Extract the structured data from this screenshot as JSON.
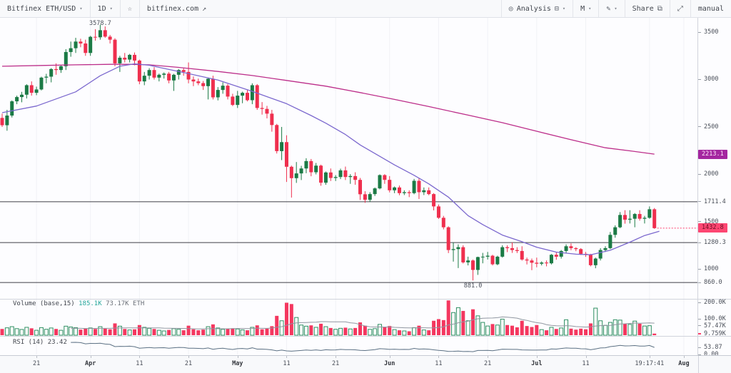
{
  "toolbar": {
    "symbol": "Bitfinex ETH/USD",
    "interval": "1D",
    "link": "bitfinex.com",
    "analysis_label": "Analysis",
    "chart_type_label": "M",
    "share_label": "Share",
    "manual_label": "manual"
  },
  "annotations": {
    "high_label": "3578.7",
    "low_label": "881.0"
  },
  "volume_pane": {
    "legend": {
      "title": "Volume (base,15)",
      "value1": "185.1K",
      "value2": "73.17K ETH"
    },
    "ticks": [
      {
        "v": 200,
        "label": "200.0K"
      },
      {
        "v": 100,
        "label": "100.0K"
      },
      {
        "v": 57.47,
        "label": "57.47K"
      },
      {
        "v": 9.759,
        "label": "9.759K",
        "pink": true
      }
    ]
  },
  "rsi_pane": {
    "legend": "RSI (14) 23.42",
    "ticks": [
      {
        "v": 53.87,
        "label": "53.87"
      },
      {
        "v": 0,
        "label": "0.00"
      }
    ]
  },
  "price_axis": {
    "ticks": [
      {
        "v": 3500,
        "label": "3500"
      },
      {
        "v": 3000,
        "label": "3000"
      },
      {
        "v": 2500,
        "label": "2500"
      },
      {
        "v": 2000,
        "label": "2000"
      },
      {
        "v": 1711.4,
        "label": "1711.4"
      },
      {
        "v": 1500,
        "label": "1500"
      },
      {
        "v": 1280.3,
        "label": "1280.3"
      },
      {
        "v": 1000,
        "label": "1000"
      },
      {
        "v": 860.0,
        "label": "860.0"
      }
    ],
    "badges": [
      {
        "v": 2213.1,
        "label": "2213.1",
        "bg": "#a426a0",
        "fg": "#ffe6fb"
      },
      {
        "v": 1432.8,
        "label": "1432.8",
        "bg": "#fd4672",
        "fg": "#6b0d22"
      }
    ]
  },
  "time_axis": {
    "ticks": [
      {
        "i": 7,
        "label": "21"
      },
      {
        "i": 18,
        "label": "Apr",
        "bold": true
      },
      {
        "i": 28,
        "label": "11"
      },
      {
        "i": 38,
        "label": "21"
      },
      {
        "i": 48,
        "label": "May",
        "bold": true
      },
      {
        "i": 58,
        "label": "11"
      },
      {
        "i": 68,
        "label": "21"
      },
      {
        "i": 79,
        "label": "Jun",
        "bold": true
      },
      {
        "i": 89,
        "label": "11"
      },
      {
        "i": 99,
        "label": "21"
      },
      {
        "i": 109,
        "label": "Jul",
        "bold": true
      },
      {
        "i": 119,
        "label": "11"
      },
      {
        "i": 132,
        "label": "19:17:41"
      },
      {
        "i": 139,
        "label": "Aug",
        "bold": true
      }
    ]
  },
  "colors": {
    "up": "#1b7a45",
    "down": "#ef2f4e",
    "ma_short": "#7b68ce",
    "ma_long": "#bc2e8a",
    "last_price_line": "#fd3e6b",
    "vol_up_stroke": "#2f8f63",
    "vol_up_fill": "#fbfdfc",
    "vol_down": "#f4375f",
    "vol_ma": "#9096a0",
    "rsi": "#5b7083",
    "level": "#3f3f46",
    "grid": "#f1f2f6",
    "divider": "#d1d4dc"
  },
  "chart_data": {
    "type": "candlestick",
    "symbol": "Bitfinex ETH/USD",
    "interval": "1D",
    "panes": [
      "price",
      "volume",
      "rsi"
    ],
    "price_range": [
      680,
      3650
    ],
    "volume_range_k": [
      0,
      200
    ],
    "rsi_range": [
      0,
      100
    ],
    "high_annotation": 3578.7,
    "low_annotation": 881.0,
    "last_price": 1432.8,
    "ma_long_last": 2213.1,
    "levels": [
      1711.4,
      1280.3,
      860.0
    ],
    "candles": [
      [
        2595,
        2640,
        2500,
        2518
      ],
      [
        2518,
        2680,
        2460,
        2620
      ],
      [
        2620,
        2780,
        2600,
        2770
      ],
      [
        2770,
        2830,
        2740,
        2815
      ],
      [
        2815,
        2870,
        2760,
        2840
      ],
      [
        2840,
        2950,
        2800,
        2940
      ],
      [
        2940,
        2980,
        2830,
        2860
      ],
      [
        2860,
        2925,
        2835,
        2895
      ],
      [
        2895,
        3030,
        2885,
        3020
      ],
      [
        3020,
        3060,
        2960,
        3030
      ],
      [
        3030,
        3120,
        2970,
        3110
      ],
      [
        3110,
        3170,
        3050,
        3100
      ],
      [
        3100,
        3150,
        3070,
        3140
      ],
      [
        3140,
        3320,
        3100,
        3290
      ],
      [
        3290,
        3400,
        3240,
        3330
      ],
      [
        3330,
        3440,
        3280,
        3400
      ],
      [
        3400,
        3430,
        3340,
        3380
      ],
      [
        3380,
        3420,
        3250,
        3280
      ],
      [
        3280,
        3460,
        3250,
        3450
      ],
      [
        3450,
        3530,
        3410,
        3445
      ],
      [
        3445,
        3578.7,
        3420,
        3520
      ],
      [
        3520,
        3560,
        3440,
        3452
      ],
      [
        3452,
        3470,
        3380,
        3420
      ],
      [
        3420,
        3435,
        3140,
        3170
      ],
      [
        3170,
        3250,
        3080,
        3230
      ],
      [
        3230,
        3280,
        3180,
        3210
      ],
      [
        3210,
        3270,
        3180,
        3260
      ],
      [
        3260,
        3285,
        3150,
        3200
      ],
      [
        3200,
        3210,
        2950,
        2980
      ],
      [
        2980,
        3080,
        2940,
        3040
      ],
      [
        3040,
        3120,
        3000,
        3100
      ],
      [
        3100,
        3130,
        3000,
        3020
      ],
      [
        3020,
        3062,
        2980,
        3050
      ],
      [
        3050,
        3075,
        3010,
        3062
      ],
      [
        3062,
        3080,
        2960,
        2990
      ],
      [
        2990,
        3060,
        2880,
        3050
      ],
      [
        3050,
        3110,
        3000,
        3100
      ],
      [
        3100,
        3122,
        3040,
        3080
      ],
      [
        3080,
        3180,
        2960,
        3000
      ],
      [
        3000,
        3032,
        2930,
        2980
      ],
      [
        2980,
        3010,
        2940,
        2962
      ],
      [
        2962,
        2985,
        2890,
        2930
      ],
      [
        2930,
        3020,
        2790,
        3008
      ],
      [
        3008,
        3040,
        2790,
        2812
      ],
      [
        2812,
        2920,
        2780,
        2890
      ],
      [
        2890,
        2970,
        2850,
        2935
      ],
      [
        2935,
        2952,
        2790,
        2820
      ],
      [
        2820,
        2850,
        2720,
        2732
      ],
      [
        2732,
        2880,
        2700,
        2830
      ],
      [
        2830,
        2872,
        2750,
        2860
      ],
      [
        2860,
        2890,
        2770,
        2782
      ],
      [
        2782,
        2960,
        2740,
        2940
      ],
      [
        2940,
        2952,
        2680,
        2700
      ],
      [
        2700,
        2762,
        2630,
        2690
      ],
      [
        2690,
        2722,
        2590,
        2640
      ],
      [
        2640,
        2680,
        2450,
        2520
      ],
      [
        2520,
        2532,
        2220,
        2245
      ],
      [
        2245,
        2500,
        2150,
        2340
      ],
      [
        2340,
        2412,
        1920,
        2080
      ],
      [
        2080,
        2092,
        1755,
        1960
      ],
      [
        1960,
        2130,
        1910,
        2010
      ],
      [
        2010,
        2090,
        1940,
        2062
      ],
      [
        2062,
        2170,
        2012,
        2140
      ],
      [
        2140,
        2162,
        1980,
        2022
      ],
      [
        2022,
        2120,
        2000,
        2092
      ],
      [
        2092,
        2102,
        1880,
        1912
      ],
      [
        1912,
        2030,
        1890,
        2020
      ],
      [
        2020,
        2062,
        1930,
        1962
      ],
      [
        1962,
        1992,
        1930,
        1972
      ],
      [
        1972,
        2060,
        1950,
        2042
      ],
      [
        2042,
        2082,
        1940,
        1972
      ],
      [
        1972,
        2002,
        1900,
        1982
      ],
      [
        1982,
        2022,
        1890,
        1942
      ],
      [
        1942,
        1962,
        1730,
        1790
      ],
      [
        1790,
        1822,
        1700,
        1732
      ],
      [
        1732,
        1812,
        1710,
        1792
      ],
      [
        1792,
        1862,
        1772,
        1852
      ],
      [
        1852,
        2000,
        1842,
        1992
      ],
      [
        1992,
        2002,
        1900,
        1942
      ],
      [
        1942,
        1982,
        1810,
        1832
      ],
      [
        1832,
        1872,
        1802,
        1862
      ],
      [
        1862,
        1882,
        1780,
        1802
      ],
      [
        1802,
        1832,
        1782,
        1812
      ],
      [
        1812,
        1832,
        1760,
        1802
      ],
      [
        1802,
        1952,
        1790,
        1932
      ],
      [
        1932,
        1962,
        1740,
        1812
      ],
      [
        1812,
        1862,
        1782,
        1832
      ],
      [
        1832,
        1862,
        1780,
        1792
      ],
      [
        1792,
        1802,
        1620,
        1662
      ],
      [
        1662,
        1682,
        1530,
        1542
      ],
      [
        1542,
        1562,
        1420,
        1442
      ],
      [
        1442,
        1452,
        1170,
        1202
      ],
      [
        1202,
        1282,
        1080,
        1212
      ],
      [
        1212,
        1262,
        1012,
        1232
      ],
      [
        1232,
        1252,
        1060,
        1072
      ],
      [
        1072,
        1132,
        1040,
        1092
      ],
      [
        1092,
        1102,
        881,
        992
      ],
      [
        992,
        1132,
        940,
        1128
      ],
      [
        1128,
        1172,
        1062,
        1132
      ],
      [
        1132,
        1182,
        1102,
        1142
      ],
      [
        1142,
        1152,
        1040,
        1052
      ],
      [
        1052,
        1142,
        1042,
        1132
      ],
      [
        1132,
        1252,
        1122,
        1232
      ],
      [
        1232,
        1252,
        1180,
        1222
      ],
      [
        1222,
        1282,
        1172,
        1202
      ],
      [
        1202,
        1232,
        1170,
        1192
      ],
      [
        1192,
        1242,
        1090,
        1102
      ],
      [
        1102,
        1122,
        1050,
        1092
      ],
      [
        1092,
        1112,
        990,
        1068
      ],
      [
        1068,
        1122,
        1020,
        1058
      ],
      [
        1058,
        1082,
        1040,
        1070
      ],
      [
        1070,
        1092,
        1030,
        1062
      ],
      [
        1062,
        1160,
        1050,
        1152
      ],
      [
        1152,
        1182,
        1100,
        1132
      ],
      [
        1132,
        1202,
        1112,
        1192
      ],
      [
        1192,
        1262,
        1172,
        1242
      ],
      [
        1242,
        1272,
        1200,
        1222
      ],
      [
        1222,
        1232,
        1190,
        1212
      ],
      [
        1212,
        1222,
        1150,
        1162
      ],
      [
        1162,
        1182,
        1130,
        1152
      ],
      [
        1152,
        1162,
        1030,
        1042
      ],
      [
        1042,
        1122,
        1010,
        1112
      ],
      [
        1112,
        1222,
        1092,
        1202
      ],
      [
        1202,
        1242,
        1182,
        1222
      ],
      [
        1222,
        1392,
        1212,
        1362
      ],
      [
        1362,
        1462,
        1332,
        1442
      ],
      [
        1442,
        1602,
        1432,
        1572
      ],
      [
        1572,
        1622,
        1480,
        1522
      ],
      [
        1522,
        1622,
        1482,
        1532
      ],
      [
        1532,
        1592,
        1442,
        1582
      ],
      [
        1582,
        1622,
        1512,
        1532
      ],
      [
        1532,
        1562,
        1482,
        1542
      ],
      [
        1542,
        1662,
        1532,
        1632
      ],
      [
        1632,
        1645,
        1425,
        1432.8
      ]
    ],
    "volumes_k": [
      38,
      45,
      52,
      40,
      35,
      48,
      42,
      30,
      46,
      36,
      44,
      38,
      30,
      55,
      50,
      46,
      34,
      40,
      44,
      38,
      52,
      40,
      36,
      72,
      55,
      38,
      32,
      36,
      62,
      48,
      42,
      38,
      30,
      26,
      32,
      40,
      36,
      30,
      58,
      36,
      30,
      34,
      52,
      66,
      44,
      36,
      40,
      42,
      38,
      32,
      30,
      48,
      60,
      36,
      40,
      55,
      118,
      88,
      198,
      190,
      108,
      62,
      55,
      60,
      48,
      70,
      52,
      44,
      36,
      42,
      46,
      38,
      44,
      78,
      58,
      36,
      40,
      66,
      48,
      56,
      34,
      30,
      26,
      24,
      46,
      58,
      32,
      30,
      88,
      98,
      92,
      212,
      138,
      168,
      148,
      88,
      158,
      118,
      78,
      56,
      68,
      62,
      98,
      62,
      58,
      48,
      88,
      56,
      50,
      62,
      34,
      30,
      48,
      38,
      44,
      94,
      40,
      34,
      40,
      36,
      72,
      165,
      88,
      60,
      78,
      94,
      92,
      70,
      66,
      86,
      70,
      56,
      58,
      9.759
    ],
    "ma_short_points": [
      [
        0,
        2650
      ],
      [
        7,
        2720
      ],
      [
        15,
        2870
      ],
      [
        20,
        3040
      ],
      [
        24,
        3140
      ],
      [
        27,
        3165
      ],
      [
        30,
        3150
      ],
      [
        36,
        3085
      ],
      [
        44,
        2995
      ],
      [
        51,
        2875
      ],
      [
        58,
        2745
      ],
      [
        63,
        2620
      ],
      [
        66,
        2540
      ],
      [
        70,
        2420
      ],
      [
        73,
        2310
      ],
      [
        77,
        2190
      ],
      [
        80,
        2100
      ],
      [
        84,
        1990
      ],
      [
        87,
        1900
      ],
      [
        91,
        1760
      ],
      [
        95,
        1565
      ],
      [
        98,
        1470
      ],
      [
        102,
        1360
      ],
      [
        106,
        1290
      ],
      [
        109,
        1232
      ],
      [
        113,
        1180
      ],
      [
        117,
        1158
      ],
      [
        120,
        1152
      ],
      [
        124,
        1200
      ],
      [
        128,
        1285
      ],
      [
        131,
        1355
      ],
      [
        134,
        1400
      ]
    ],
    "ma_long_points": [
      [
        0,
        3140
      ],
      [
        8,
        3148
      ],
      [
        15,
        3155
      ],
      [
        22,
        3160
      ],
      [
        26,
        3160
      ],
      [
        30,
        3155
      ],
      [
        36,
        3128
      ],
      [
        44,
        3085
      ],
      [
        51,
        3042
      ],
      [
        58,
        2990
      ],
      [
        66,
        2930
      ],
      [
        73,
        2862
      ],
      [
        80,
        2790
      ],
      [
        87,
        2715
      ],
      [
        95,
        2625
      ],
      [
        102,
        2545
      ],
      [
        109,
        2455
      ],
      [
        116,
        2365
      ],
      [
        123,
        2280
      ],
      [
        128,
        2248
      ],
      [
        133,
        2213
      ]
    ],
    "rsi_period": 14,
    "volume_ma_period": 15
  }
}
